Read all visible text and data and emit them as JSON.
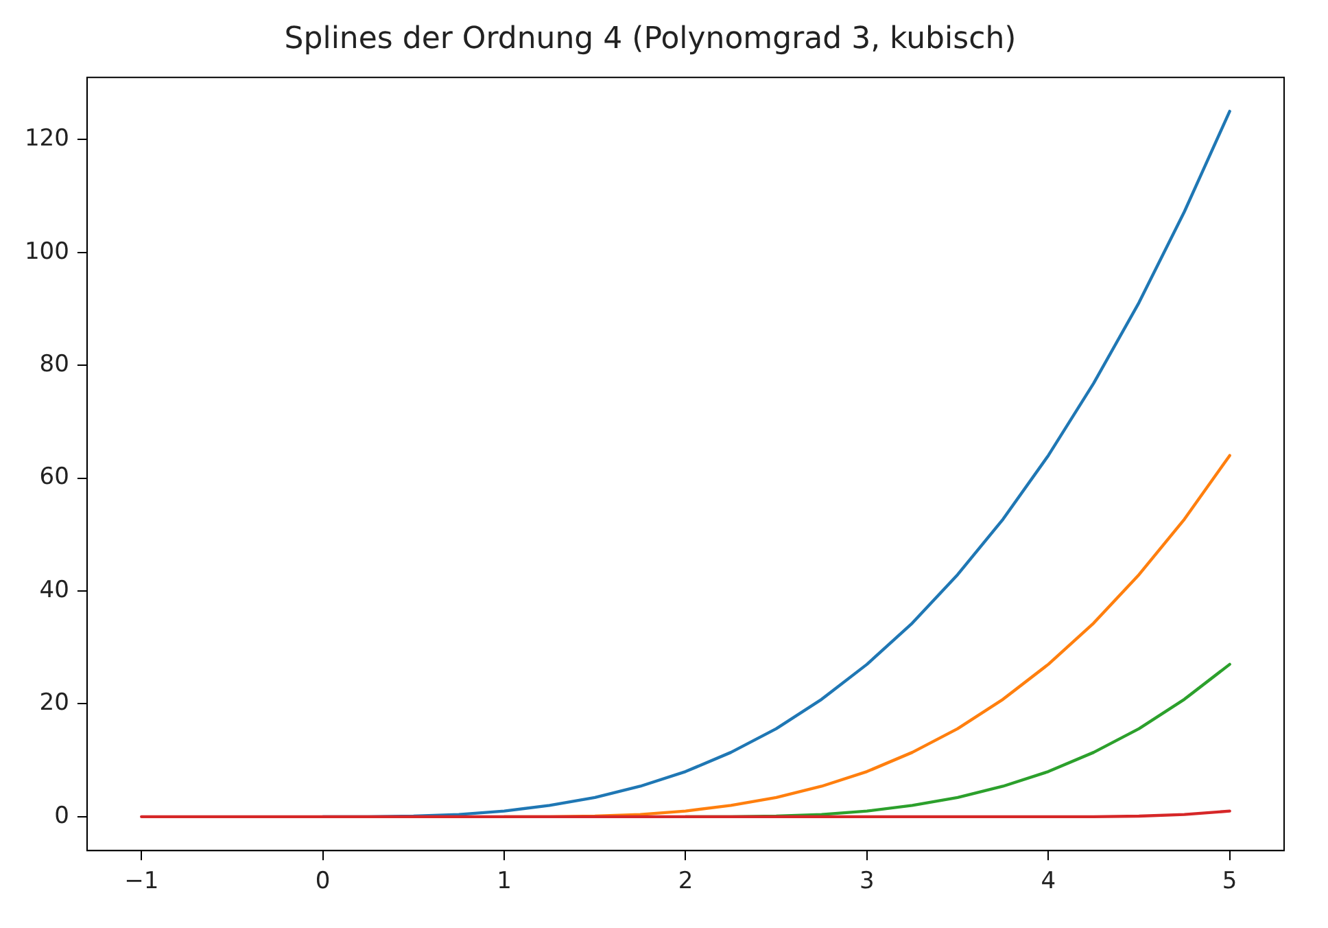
{
  "chart_data": {
    "type": "line",
    "title": "Splines der Ordnung 4 (Polynomgrad 3, kubisch)",
    "x": [
      -1,
      -0.75,
      -0.5,
      -0.25,
      0,
      0.25,
      0.5,
      0.75,
      1,
      1.25,
      1.5,
      1.75,
      2,
      2.25,
      2.5,
      2.75,
      3,
      3.25,
      3.5,
      3.75,
      4,
      4.25,
      4.5,
      4.75,
      5
    ],
    "series": [
      {
        "color": "#1f77b4",
        "values": [
          null,
          null,
          null,
          null,
          0,
          0,
          0.1,
          0.4,
          1,
          2,
          3.4,
          5.4,
          8,
          11.4,
          15.6,
          20.8,
          27,
          34.3,
          42.9,
          52.7,
          64,
          76.8,
          91.1,
          107.2,
          125
        ]
      },
      {
        "color": "#ff7f0e",
        "values": [
          null,
          null,
          null,
          null,
          null,
          null,
          null,
          null,
          0,
          0,
          0.1,
          0.4,
          1,
          2,
          3.4,
          5.4,
          8,
          11.4,
          15.6,
          20.8,
          27,
          34.3,
          42.9,
          52.7,
          64
        ]
      },
      {
        "color": "#2ca02c",
        "values": [
          null,
          null,
          null,
          null,
          null,
          null,
          null,
          null,
          null,
          null,
          null,
          null,
          0,
          0,
          0.1,
          0.4,
          1,
          2,
          3.4,
          5.4,
          8,
          11.4,
          15.6,
          20.8,
          27
        ]
      },
      {
        "color": "#d62728",
        "values": [
          0,
          0,
          0,
          0,
          0,
          0,
          0,
          0,
          0,
          0,
          0,
          0,
          0,
          0,
          0,
          0,
          0,
          0,
          0,
          0,
          0,
          0,
          0.1,
          0.4,
          1
        ]
      }
    ],
    "xlim": [
      -1.3,
      5.3
    ],
    "xticks": [
      -1,
      0,
      1,
      2,
      3,
      4,
      5
    ],
    "ylim": [
      -6,
      131
    ],
    "yticks": [
      0,
      20,
      40,
      60,
      80,
      100,
      120
    ],
    "grid": false,
    "legend": false,
    "marker": "none",
    "line_style": "solid"
  }
}
